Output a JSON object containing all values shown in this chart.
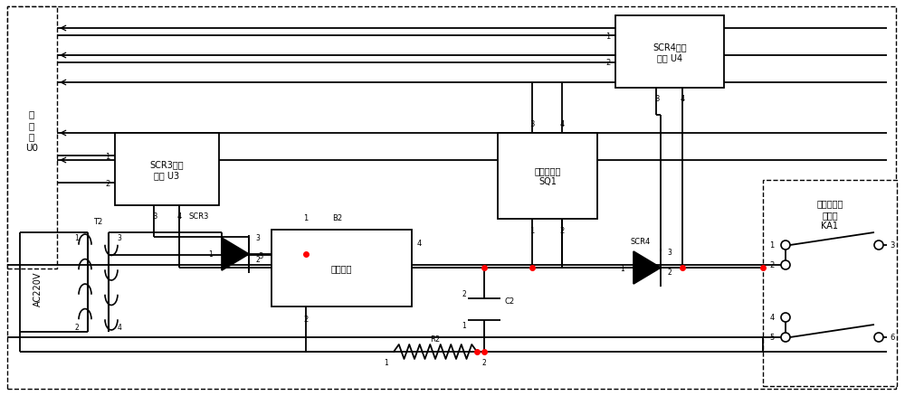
{
  "fig_w": 10.0,
  "fig_h": 4.39,
  "dpi": 100,
  "lw": 1.3,
  "controller_label": "控\n制\n器\nU0",
  "scr3_drive_label": "SCR3驱动\n电路 U3",
  "scr4_drive_label": "SCR4驱动\n电路 U4",
  "rectifier_label": "整流电路",
  "sq1_label": "电压变送器\nSQ1",
  "ka1_label": "充退磁切换\n继电器\nKA1",
  "ac_label": "AC220V",
  "t2_label": "T2",
  "scr3_label": "SCR3",
  "scr4_label": "SCR4",
  "r2_label": "R2",
  "c2_label": "C2",
  "b2_label": "B2",
  "font_cn": "SimHei"
}
